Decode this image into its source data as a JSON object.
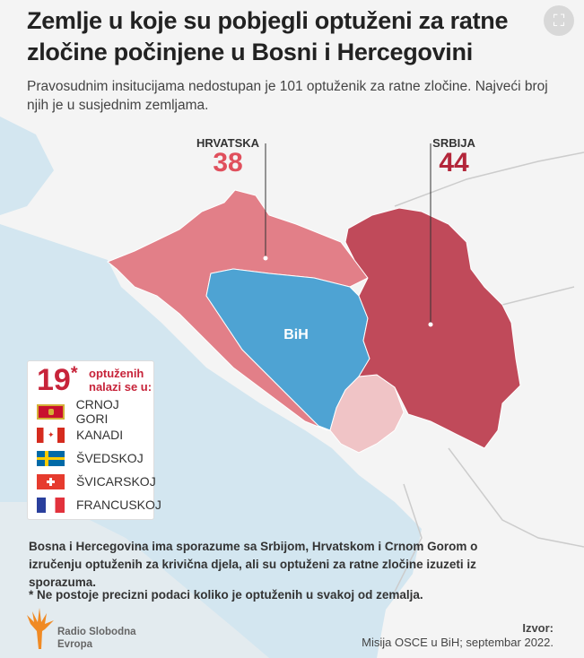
{
  "header": {
    "title": "Zemlje u koje su pobjegli optuženi za ratne zločine počinjene u Bosni i Hercegovini",
    "subtitle": "Pravosudnim insitucijama nedostupan je 101 optuženik za ratne zločine. Najveći broj njih je u susjednim zemljama.",
    "expand_icon": "expand-icon"
  },
  "map": {
    "croatia": {
      "name": "HRVATSKA",
      "count": "38",
      "color": "#e27f88"
    },
    "serbia": {
      "name": "SRBIJA",
      "count": "44",
      "color": "#c04a5a"
    },
    "bih": {
      "name": "BiH",
      "color": "#4ea3d3"
    },
    "montenegro_color": "#f0c4c6",
    "sea_color": "#d3e6f0"
  },
  "legend": {
    "count": "19",
    "asterisk": "*",
    "text_line1": "optuženih",
    "text_line2": "nalazi se u:",
    "countries": [
      {
        "label": "CRNOJ GORI",
        "flag": "montenegro"
      },
      {
        "label": "KANADI",
        "flag": "canada"
      },
      {
        "label": "ŠVEDSKOJ",
        "flag": "sweden"
      },
      {
        "label": "ŠVICARSKOJ",
        "flag": "switzerland"
      },
      {
        "label": "FRANCUSKOJ",
        "flag": "france"
      }
    ]
  },
  "notes": {
    "agreement": "Bosna i Hercegovina ima sporazume sa Srbijom, Hrvatskom i Crnom Gorom o izručenju optuženih za krivična djela, ali su optuženi za ratne zločine izuzeti iz sporazuma.",
    "footnote": "* Ne postoje precizni podaci koliko je optuženih u svakoj od zemalja."
  },
  "footer": {
    "logo_line1": "Radio Slobodna",
    "logo_line2": "Evropa",
    "source_label": "Izvor:",
    "source_text": "Misija OSCE u BiH; septembar 2022."
  }
}
